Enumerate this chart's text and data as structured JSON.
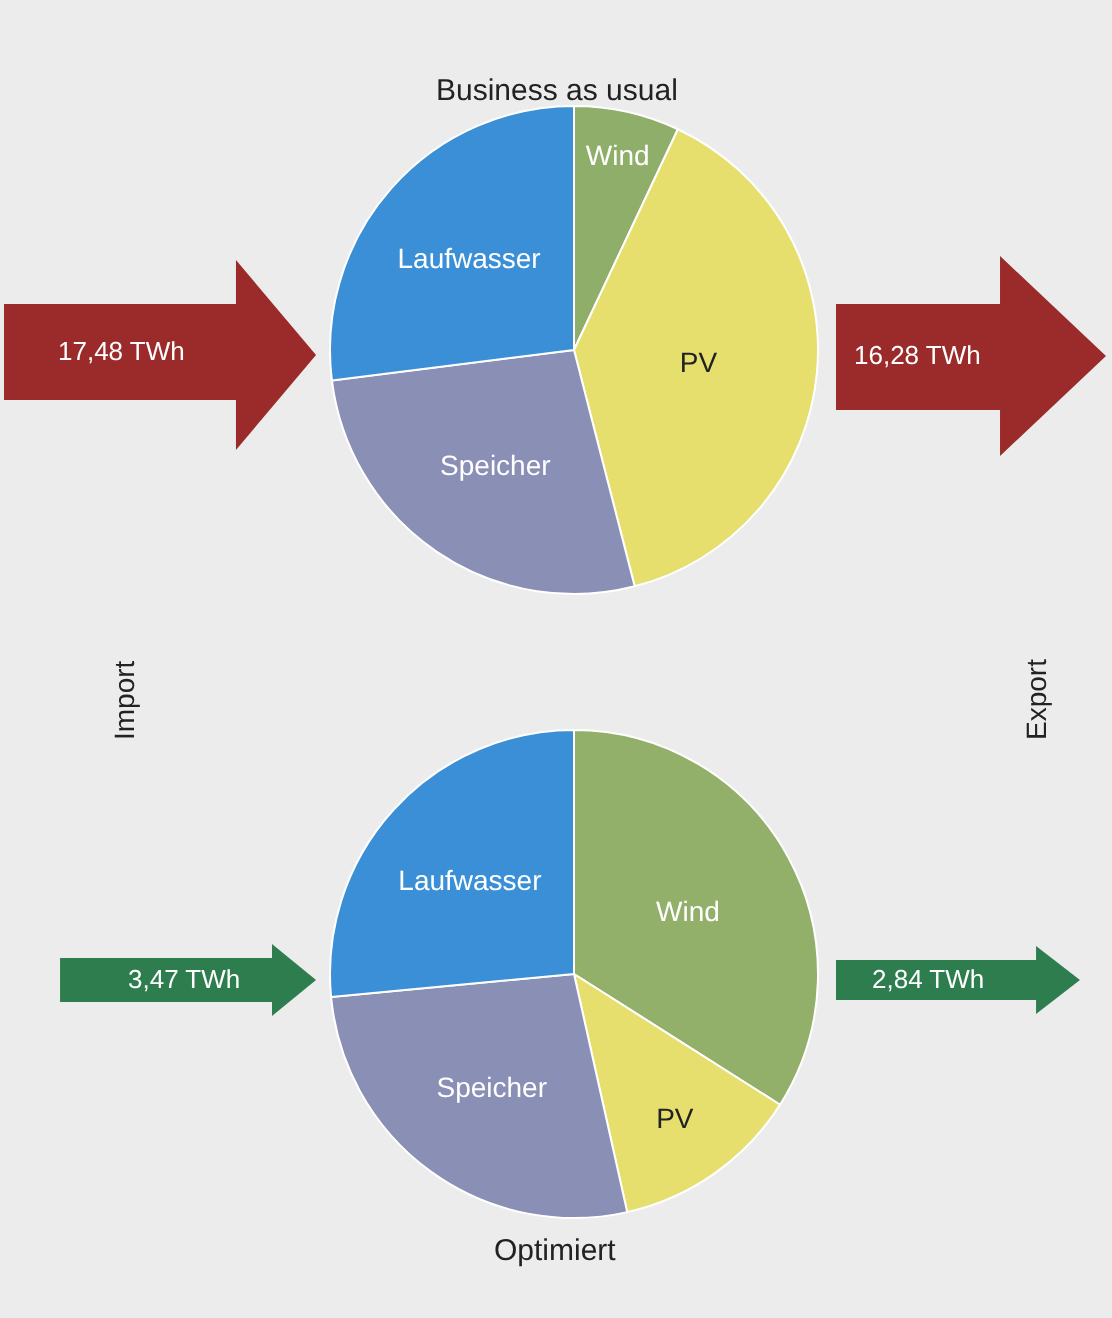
{
  "chart_data": [
    {
      "type": "pie",
      "title": "Business as usual",
      "categories": [
        "Wind",
        "PV",
        "Speicher",
        "Laufwasser"
      ],
      "values": [
        7,
        39,
        27,
        27
      ],
      "colors": [
        "#8fae6a",
        "#e6df6e",
        "#8a8fb5",
        "#3b8fd6"
      ],
      "annotations": [
        "17,48 TWh",
        "16,28 TWh",
        "Import",
        "Export"
      ]
    },
    {
      "type": "pie",
      "title": "Optimiert",
      "categories": [
        "Wind",
        "PV",
        "Speicher",
        "Laufwasser"
      ],
      "values": [
        34,
        12.5,
        27,
        26.5
      ],
      "colors": [
        "#93b06a",
        "#e6df6e",
        "#8a8fb5",
        "#3b8fd6"
      ],
      "annotations": [
        "3,47 TWh",
        "2,84 TWh"
      ]
    }
  ]
}
